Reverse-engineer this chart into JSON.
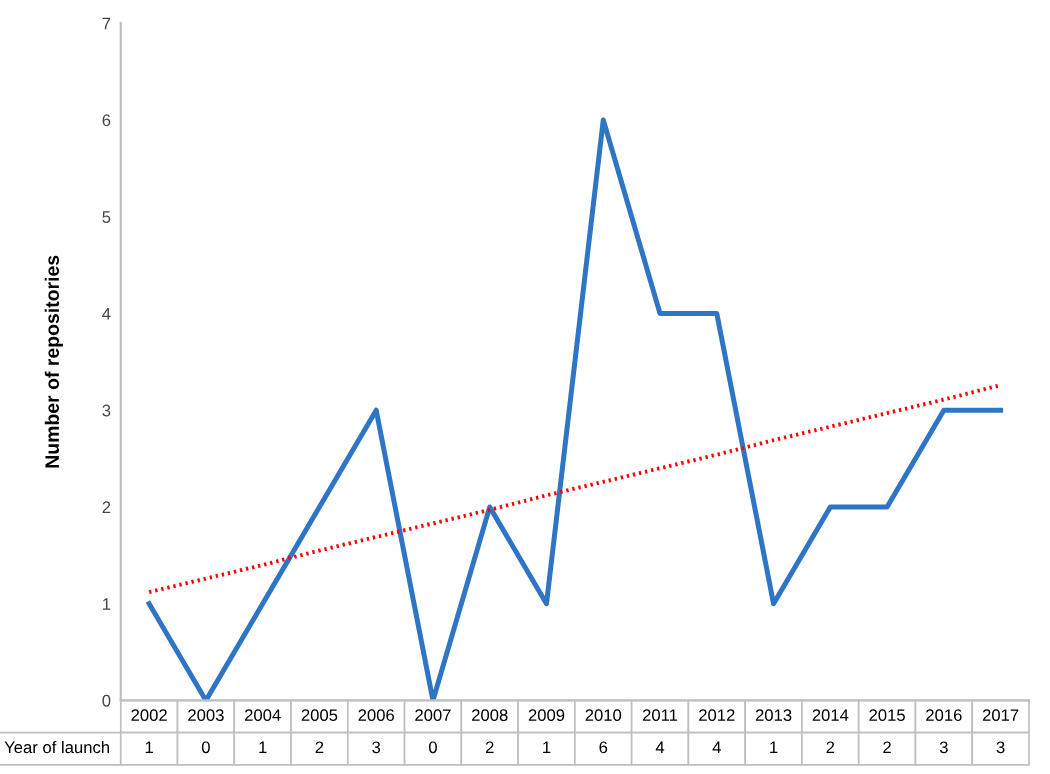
{
  "chart_data": {
    "type": "line",
    "ylabel": "Number of repositories",
    "categories": [
      "2002",
      "2003",
      "2004",
      "2005",
      "2006",
      "2007",
      "2008",
      "2009",
      "2010",
      "2011",
      "2012",
      "2013",
      "2014",
      "2015",
      "2016",
      "2017"
    ],
    "series": [
      {
        "name": "Year of launch",
        "color": "#2e75c6",
        "values": [
          1,
          0,
          1,
          2,
          3,
          0,
          2,
          1,
          6,
          4,
          4,
          1,
          2,
          2,
          3,
          3
        ],
        "value_labels": [
          "1",
          "0",
          "1",
          "2",
          "3",
          "0",
          "2",
          "1",
          "6",
          "4",
          "4",
          "1",
          "2",
          "2",
          "3",
          "3"
        ],
        "line_style": "solid"
      },
      {
        "type": "line",
        "color": "#ff0000",
        "line_style": "dotted",
        "values": [
          1.12,
          1.26,
          1.4,
          1.55,
          1.69,
          1.83,
          1.97,
          2.12,
          2.26,
          2.4,
          2.54,
          2.69,
          2.83,
          2.97,
          3.11,
          3.26
        ]
      }
    ],
    "ylim": [
      0,
      7
    ],
    "yticks": [
      0,
      1,
      2,
      3,
      4,
      5,
      6,
      7
    ],
    "grid": false,
    "marker": "none"
  }
}
